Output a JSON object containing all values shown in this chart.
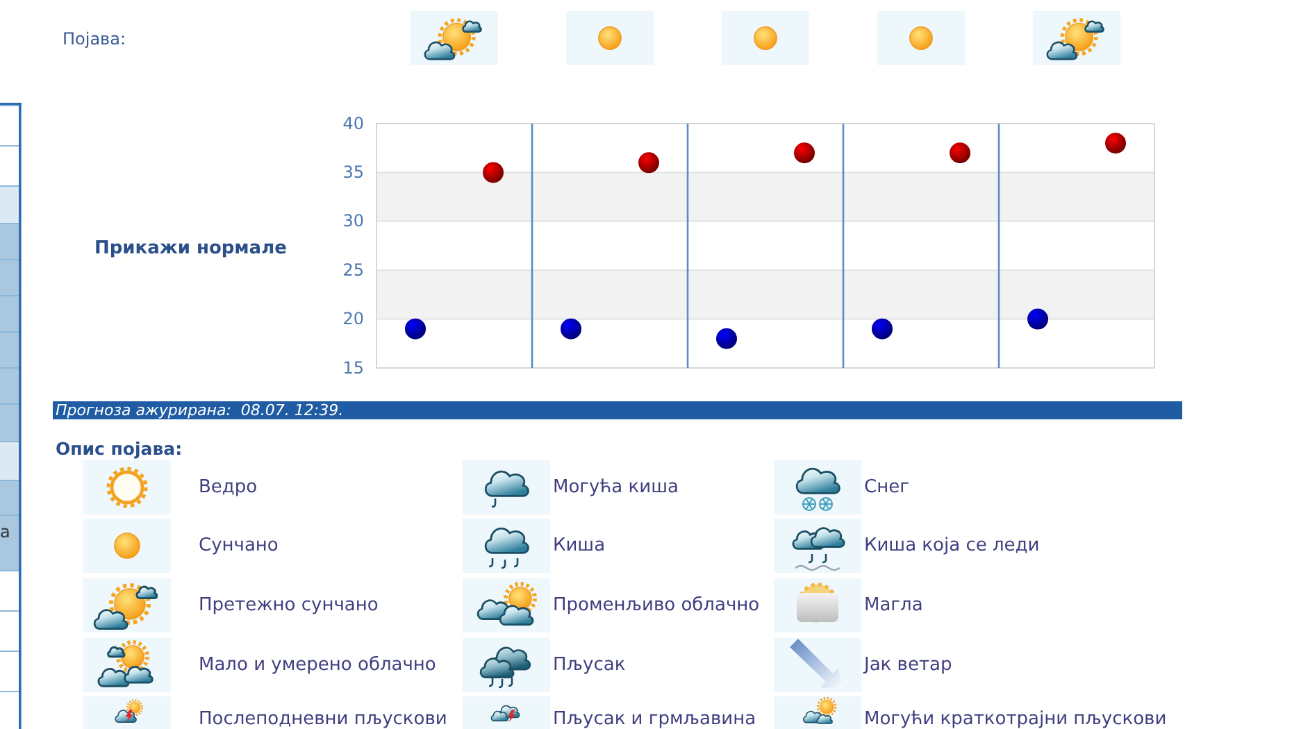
{
  "chart_data": {
    "type": "scatter",
    "categories": [
      null,
      null,
      null,
      null,
      null
    ],
    "series": [
      {
        "color": "#0000c8",
        "values": [
          19,
          19,
          18,
          19,
          20
        ]
      },
      {
        "color": "#c80000",
        "values": [
          35,
          36,
          37,
          37,
          38
        ]
      }
    ],
    "ylim": [
      15,
      40
    ],
    "yticks": [
      15,
      20,
      25,
      30,
      35,
      40
    ],
    "grid": true,
    "tick_labels": "y",
    "marker": "circle",
    "annotations": [
      "Појава:",
      "Прикажи нормале",
      "Прогноза ажурирана:  08.07. 12:39.",
      "Опис појава:",
      "Ведро",
      "Сунчано",
      "Претежно сунчано",
      "Мало и умерено облачно",
      "Послеподневни пљускови",
      "Могућа киша",
      "Киша",
      "Променљиво облачно",
      "Пљусак",
      "Пљусак и грмљавина",
      "Снег",
      "Киша која се леди",
      "Магла",
      "Јак ветар",
      "Могући краткотрајни пљускови",
      "а"
    ]
  }
}
